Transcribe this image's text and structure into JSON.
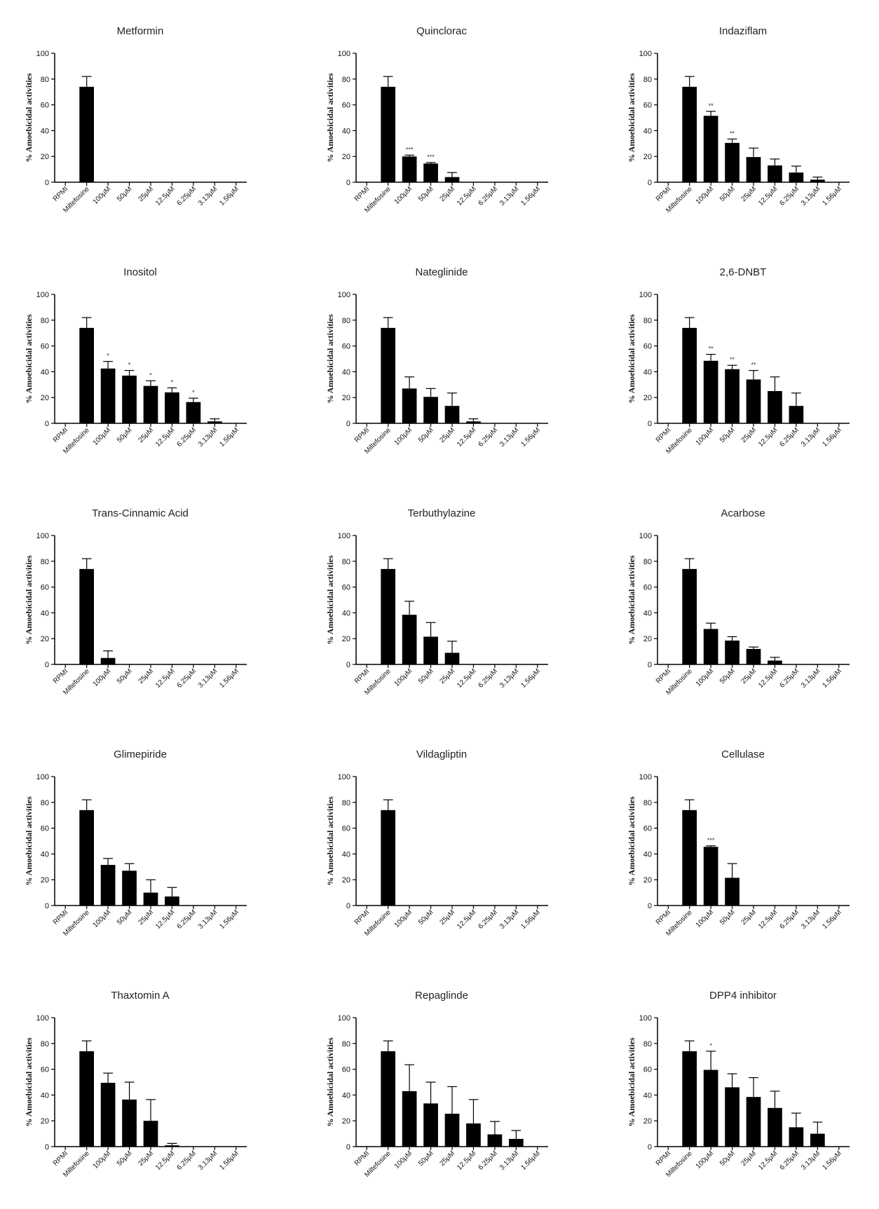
{
  "chart_data": [
    {
      "type": "bar",
      "title": "Metformin",
      "ylabel": "% Amoebicidal activities",
      "categories": [
        "RPMI",
        "Miltefosine",
        "100μM",
        "50μM",
        "25μM",
        "12.5μM",
        "6.25μM",
        "3.13μM",
        "1.56μM"
      ],
      "values": [
        0,
        74,
        0,
        0,
        0,
        0,
        0,
        0,
        0
      ],
      "errors": [
        0,
        8,
        0,
        0,
        0,
        0,
        0,
        0,
        0
      ],
      "annotations": [
        "",
        "",
        "",
        "",
        "",
        "",
        "",
        "",
        ""
      ],
      "ylim": [
        0,
        100
      ],
      "yticks": [
        "0",
        "20",
        "40",
        "60",
        "80",
        "100"
      ]
    },
    {
      "type": "bar",
      "title": "Quinclorac",
      "ylabel": "% Amoebicidal activities",
      "categories": [
        "RPMI",
        "Miltefosine",
        "100μM",
        "50μM",
        "25μM",
        "12.5μM",
        "6.25μM",
        "3.13μM",
        "1.56μM"
      ],
      "values": [
        0,
        74,
        20,
        14.5,
        4,
        0,
        0,
        0,
        0
      ],
      "errors": [
        0,
        8,
        1,
        0.8,
        3.5,
        0,
        0,
        0,
        0
      ],
      "annotations": [
        "",
        "",
        "***",
        "***",
        "",
        "",
        "",
        "",
        ""
      ],
      "ylim": [
        0,
        100
      ],
      "yticks": [
        "0",
        "20",
        "40",
        "60",
        "80",
        "100"
      ]
    },
    {
      "type": "bar",
      "title": "Indaziflam",
      "ylabel": "% Amoebicidal activities",
      "categories": [
        "RPMI",
        "Miltefosine",
        "100μM",
        "50μM",
        "25μM",
        "12.5μM",
        "6.25μM",
        "3.13μM",
        "1.56μM"
      ],
      "values": [
        0,
        74,
        51.5,
        30.5,
        19.5,
        13,
        7.5,
        2,
        0
      ],
      "errors": [
        0,
        8,
        3.5,
        3,
        7,
        5,
        5,
        2,
        0
      ],
      "annotations": [
        "",
        "",
        "**",
        "**",
        "",
        "",
        "",
        "",
        ""
      ],
      "ylim": [
        0,
        100
      ],
      "yticks": [
        "0",
        "20",
        "40",
        "60",
        "80",
        "100"
      ]
    },
    {
      "type": "bar",
      "title": "Inositol",
      "ylabel": "% Amoebicidal activities",
      "categories": [
        "RPMI",
        "Miltefosine",
        "100μM",
        "50μM",
        "25μM",
        "12.5μM",
        "6.25μM",
        "3.13μM",
        "1.56μM"
      ],
      "values": [
        0,
        74,
        42.5,
        37,
        29,
        24,
        16.5,
        1.5,
        0
      ],
      "errors": [
        0,
        8,
        5.5,
        4,
        4,
        3.5,
        3,
        2,
        0
      ],
      "annotations": [
        "",
        "",
        "*",
        "*",
        "*",
        "*",
        "*",
        "",
        ""
      ],
      "ylim": [
        0,
        100
      ],
      "yticks": [
        "0",
        "20",
        "40",
        "60",
        "80",
        "100"
      ]
    },
    {
      "type": "bar",
      "title": "Nateglinide",
      "ylabel": "% Amoebicidal activities",
      "categories": [
        "RPMI",
        "Miltefosine",
        "100μM",
        "50μM",
        "25μM",
        "12.5μM",
        "6.25μM",
        "3.13μM",
        "1.56μM"
      ],
      "values": [
        0,
        74,
        27,
        20.5,
        13.5,
        1.5,
        0,
        0,
        0
      ],
      "errors": [
        0,
        8,
        9,
        6.5,
        10,
        2,
        0,
        0,
        0
      ],
      "annotations": [
        "",
        "",
        "",
        "",
        "",
        "",
        "",
        "",
        ""
      ],
      "ylim": [
        0,
        100
      ],
      "yticks": [
        "0",
        "20",
        "40",
        "60",
        "80",
        "100"
      ]
    },
    {
      "type": "bar",
      "title": "2,6-DNBT",
      "ylabel": "% Amoebicidal activities",
      "categories": [
        "RPMI",
        "Miltefosine",
        "100μM",
        "50μM",
        "25μM",
        "12.5μM",
        "6.25μM",
        "3.13μM",
        "1.56μM"
      ],
      "values": [
        0,
        74,
        48.5,
        42,
        34,
        25,
        13.5,
        0,
        0
      ],
      "errors": [
        0,
        8,
        5,
        3,
        7,
        11,
        10,
        0,
        0
      ],
      "annotations": [
        "",
        "",
        "**",
        "**",
        "**",
        "",
        "",
        "",
        ""
      ],
      "ylim": [
        0,
        100
      ],
      "yticks": [
        "0",
        "20",
        "40",
        "60",
        "80",
        "100"
      ]
    },
    {
      "type": "bar",
      "title": "Trans-Cinnamic Acid",
      "ylabel": "% Amoebicidal activities",
      "categories": [
        "RPMI",
        "Miltefosine",
        "100μM",
        "50μM",
        "25μM",
        "12.5μM",
        "6.25μM",
        "3.13μM",
        "1.56μM"
      ],
      "values": [
        0,
        74,
        5,
        0,
        0,
        0,
        0,
        0,
        0
      ],
      "errors": [
        0,
        8,
        5.5,
        0,
        0,
        0,
        0,
        0,
        0
      ],
      "annotations": [
        "",
        "",
        "",
        "",
        "",
        "",
        "",
        "",
        ""
      ],
      "ylim": [
        0,
        100
      ],
      "yticks": [
        "0",
        "20",
        "40",
        "60",
        "80",
        "100"
      ]
    },
    {
      "type": "bar",
      "title": "Terbuthylazine",
      "ylabel": "% Amoebicidal activities",
      "categories": [
        "RPMI",
        "Miltefosine",
        "100μM",
        "50μM",
        "25μM",
        "12.5μM",
        "6.25μM",
        "3.13μM",
        "1.56μM"
      ],
      "values": [
        0,
        74,
        38.5,
        21.5,
        9,
        0,
        0,
        0,
        0
      ],
      "errors": [
        0,
        8,
        10.5,
        11,
        9,
        0,
        0,
        0,
        0
      ],
      "annotations": [
        "",
        "",
        "",
        "",
        "",
        "",
        "",
        "",
        ""
      ],
      "ylim": [
        0,
        100
      ],
      "yticks": [
        "0",
        "20",
        "40",
        "60",
        "80",
        "100"
      ]
    },
    {
      "type": "bar",
      "title": "Acarbose",
      "ylabel": "% Amoebicidal activities",
      "categories": [
        "RPMI",
        "Miltefosine",
        "100μM",
        "50μM",
        "25μM",
        "12.5μM",
        "6.25μM",
        "3.13μM",
        "1.56μM"
      ],
      "values": [
        0,
        74,
        27.5,
        18.5,
        12,
        3,
        0,
        0,
        0
      ],
      "errors": [
        0,
        8,
        4.5,
        3,
        1.5,
        2.5,
        0,
        0,
        0
      ],
      "annotations": [
        "",
        "",
        "",
        "",
        "",
        "",
        "",
        "",
        ""
      ],
      "ylim": [
        0,
        100
      ],
      "yticks": [
        "0",
        "20",
        "40",
        "60",
        "80",
        "100"
      ]
    },
    {
      "type": "bar",
      "title": "Glimepiride",
      "ylabel": "% Amoebicidal activities",
      "categories": [
        "RPMI",
        "Miltefosine",
        "100μM",
        "50μM",
        "25μM",
        "12.5μM",
        "6.25μM",
        "3.13μM",
        "1.56μM"
      ],
      "values": [
        0,
        74,
        31.5,
        27,
        10,
        7,
        0,
        0,
        0
      ],
      "errors": [
        0,
        8,
        5,
        5.5,
        10,
        7,
        0,
        0,
        0
      ],
      "annotations": [
        "",
        "",
        "",
        "",
        "",
        "",
        "",
        "",
        ""
      ],
      "ylim": [
        0,
        100
      ],
      "yticks": [
        "0",
        "20",
        "40",
        "60",
        "80",
        "100"
      ]
    },
    {
      "type": "bar",
      "title": "Vildagliptin",
      "ylabel": "% Amoebicidal activities",
      "categories": [
        "RPMI",
        "Miltefosine",
        "100μM",
        "50μM",
        "25μM",
        "12.5μM",
        "6.25μM",
        "3.13μM",
        "1.56μM"
      ],
      "values": [
        0,
        74,
        0,
        0,
        0,
        0,
        0,
        0,
        0
      ],
      "errors": [
        0,
        8,
        0,
        0,
        0,
        0,
        0,
        0,
        0
      ],
      "annotations": [
        "",
        "",
        "",
        "",
        "",
        "",
        "",
        "",
        ""
      ],
      "ylim": [
        0,
        100
      ],
      "yticks": [
        "0",
        "20",
        "40",
        "60",
        "80",
        "100"
      ]
    },
    {
      "type": "bar",
      "title": "Cellulase",
      "ylabel": "% Amoebicidal activities",
      "categories": [
        "RPMI",
        "Miltefosine",
        "100μM",
        "50μM",
        "25μM",
        "12.5μM",
        "6.25μM",
        "3.13μM",
        "1.56μM"
      ],
      "values": [
        0,
        74,
        45.5,
        21.5,
        0,
        0,
        0,
        0,
        0
      ],
      "errors": [
        0,
        8,
        0.8,
        11,
        0,
        0,
        0,
        0,
        0
      ],
      "annotations": [
        "",
        "",
        "***",
        "",
        "",
        "",
        "",
        "",
        ""
      ],
      "ylim": [
        0,
        100
      ],
      "yticks": [
        "0",
        "20",
        "40",
        "60",
        "80",
        "100"
      ]
    },
    {
      "type": "bar",
      "title": "Thaxtomin A",
      "ylabel": "% Amoebicidal activities",
      "categories": [
        "RPMI",
        "Miltefosine",
        "100μM",
        "50μM",
        "25μM",
        "12.5μM",
        "6.25μM",
        "3.13μM",
        "1.56μM"
      ],
      "values": [
        0,
        74,
        49.5,
        36.5,
        20,
        1,
        0,
        0,
        0
      ],
      "errors": [
        0,
        8,
        7.5,
        13.5,
        16.5,
        1.5,
        0,
        0,
        0
      ],
      "annotations": [
        "",
        "",
        "",
        "",
        "",
        "",
        "",
        "",
        ""
      ],
      "ylim": [
        0,
        100
      ],
      "yticks": [
        "0",
        "20",
        "40",
        "60",
        "80",
        "100"
      ]
    },
    {
      "type": "bar",
      "title": "Repaglinde",
      "ylabel": "% Amoebicidal activities",
      "categories": [
        "RPMI",
        "Miltefosine",
        "100μM",
        "50μM",
        "25μM",
        "12.5μM",
        "6.25μM",
        "3.13μM",
        "1.56μM"
      ],
      "values": [
        0,
        74,
        43,
        33.5,
        25.5,
        18,
        9.5,
        6,
        0
      ],
      "errors": [
        0,
        8,
        20.5,
        16.5,
        21,
        18.5,
        10,
        6.5,
        0
      ],
      "annotations": [
        "",
        "",
        "",
        "",
        "",
        "",
        "",
        "",
        ""
      ],
      "ylim": [
        0,
        100
      ],
      "yticks": [
        "0",
        "20",
        "40",
        "60",
        "80",
        "100"
      ]
    },
    {
      "type": "bar",
      "title": "DPP4 inhibitor",
      "ylabel": "% Amoebicidal activities",
      "categories": [
        "RPMI",
        "Miltefosine",
        "100μM",
        "50μM",
        "25μM",
        "12.5μM",
        "6.25μM",
        "3.13μM",
        "1.56μM"
      ],
      "values": [
        0,
        74,
        59.5,
        46,
        38.5,
        30,
        15,
        10,
        0
      ],
      "errors": [
        0,
        8,
        14.5,
        10.5,
        15,
        13,
        11,
        9,
        0
      ],
      "annotations": [
        "",
        "",
        "*",
        "",
        "",
        "",
        "",
        "",
        ""
      ],
      "ylim": [
        0,
        100
      ],
      "yticks": [
        "0",
        "20",
        "40",
        "60",
        "80",
        "100"
      ]
    }
  ]
}
